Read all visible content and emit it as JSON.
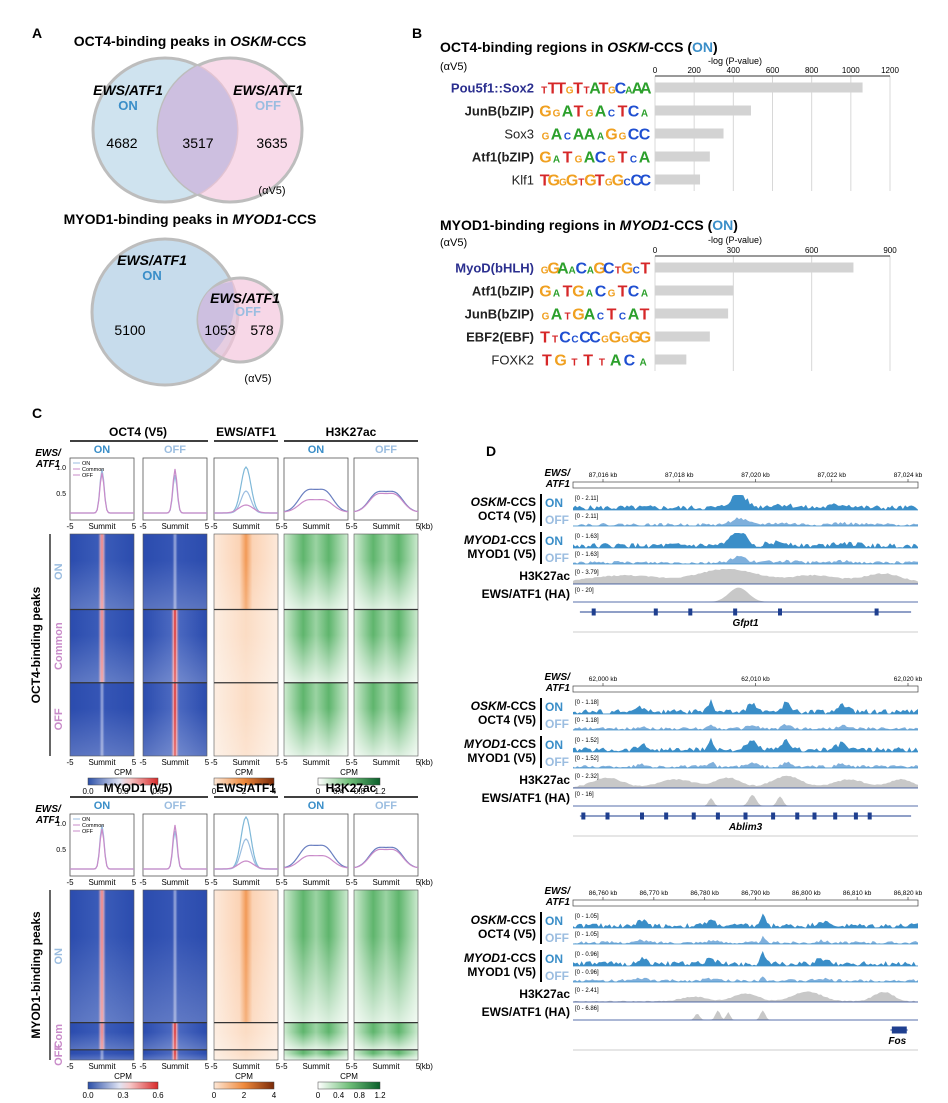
{
  "colors": {
    "on": "#3a8ec8",
    "off": "#9bbde0",
    "common": "#c98bc9",
    "lightblue_venn": "#cfe3ef",
    "pink_venn": "#f4c6dd",
    "motif_name_blue": "#2b2f8f",
    "bar_gray": "#d3d3d3",
    "track_blue": "#3a8ec8",
    "track_gray": "#c8c8c8"
  },
  "panelA": {
    "label": "A",
    "venn1": {
      "title_pre": "OCT4-binding peaks in ",
      "title_it": "OSKM",
      "title_post": "-CCS",
      "left_name": "EWS/ATF1",
      "left_state": "ON",
      "right_name": "EWS/ATF1",
      "right_state": "OFF",
      "left_only": "4682",
      "overlap": "3517",
      "right_only": "3635",
      "note": "(αV5)"
    },
    "venn2": {
      "title_pre": "MYOD1-binding peaks in ",
      "title_it": "MYOD1",
      "title_post": "-CCS",
      "left_name": "EWS/ATF1",
      "left_state": "ON",
      "right_name": "EWS/ATF1",
      "right_state": "OFF",
      "left_only": "5100",
      "overlap": "1053",
      "right_only": "578",
      "note": "(αV5)"
    }
  },
  "panelB": {
    "label": "B",
    "chart_data": [
      {
        "type": "bar",
        "title_pre": "OCT4-binding regions in ",
        "title_it": "OSKM",
        "title_mid": "-CCS (",
        "title_on": "ON",
        "title_post": ")",
        "note": "(αV5)",
        "xlabel": "-log (P-value)",
        "xlim": [
          0,
          1200
        ],
        "ticks": [
          0,
          200,
          400,
          600,
          800,
          1000,
          1200
        ],
        "categories": [
          "Pou5f1::Sox2",
          "JunB(bZIP)",
          "Sox3",
          "Atf1(bZIP)",
          "Klf1"
        ],
        "values": [
          1060,
          490,
          350,
          280,
          230
        ],
        "logos": [
          "TTTGTTATGCAAA",
          "GGATGACTCA",
          "GACAAAGGCC",
          "GATGACGTCA",
          "TGGGTGTGGCCC"
        ]
      },
      {
        "type": "bar",
        "title_pre": "MYOD1-binding regions in ",
        "title_it": "MYOD1",
        "title_mid": "-CCS (",
        "title_on": "ON",
        "title_post": ")",
        "note": "(αV5)",
        "xlabel": "-log (P-value)",
        "xlim": [
          0,
          900
        ],
        "ticks": [
          0,
          300,
          600,
          900
        ],
        "categories": [
          "MyoD(bHLH)",
          "Atf1(bZIP)",
          "JunB(bZIP)",
          "EBF2(EBF)",
          "FOXK2"
        ],
        "values": [
          760,
          300,
          280,
          210,
          120
        ],
        "logos": [
          "GGAACAGCTGCT",
          "GATGACGTCA",
          "GATGACTCAT",
          "TTCCCCGGGGG",
          "TGTTTACA"
        ]
      }
    ]
  },
  "panelC": {
    "label": "C",
    "ews_label_1": "EWS/",
    "ews_label_2": "ATF1",
    "top": {
      "headers": [
        "OCT4 (V5)",
        "EWS/ATF1",
        "H3K27ac"
      ],
      "col_states": [
        "ON",
        "OFF",
        "ON",
        "OFF"
      ],
      "legend": [
        "ON",
        "Common",
        "OFF"
      ],
      "yticks": [
        "1.0",
        "0.5"
      ],
      "xaxis": [
        "-5",
        "Summit",
        "5"
      ],
      "kb": "(kb)",
      "row_title": "OCT4-binding peaks",
      "groups": [
        "ON",
        "Common",
        "OFF"
      ]
    },
    "bottom": {
      "headers": [
        "MYOD1 (V5)",
        "EWS/ATF1",
        "H3K27ac"
      ],
      "col_states": [
        "ON",
        "OFF",
        "ON",
        "OFF"
      ],
      "legend": [
        "ON",
        "Common",
        "OFF"
      ],
      "yticks": [
        "1.0",
        "0.5"
      ],
      "xaxis": [
        "-5",
        "Summit",
        "5"
      ],
      "kb": "(kb)",
      "row_title": "MYOD1-binding peaks",
      "groups": [
        "ON",
        "Com",
        "OFF"
      ]
    },
    "colorbars": {
      "cpm": "CPM",
      "blue_ticks": [
        "0.0",
        "0.3",
        "0.6"
      ],
      "orange_ticks": [
        "0",
        "2",
        "4"
      ],
      "green_ticks": [
        "0",
        "0.4",
        "0.8",
        "1.2"
      ]
    }
  },
  "panelD": {
    "label": "D",
    "ews_1": "EWS/",
    "ews_2": "ATF1",
    "row_labels": {
      "oskm_it": "OSKM",
      "oskm_post": "-CCS",
      "oct4": "OCT4 (V5)",
      "myod_it": "MYOD1",
      "myod_post": "-CCS",
      "myod1": "MYOD1 (V5)",
      "h3k27ac": "H3K27ac",
      "ewsha": "EWS/ATF1 (HA)",
      "on": "ON",
      "off": "OFF"
    },
    "tracks": [
      {
        "coords": [
          "87,016 kb",
          "87,018 kb",
          "87,020 kb",
          "87,022 kb",
          "87,024 kb"
        ],
        "ranges": [
          "[0 - 2.11]",
          "[0 - 2.11]",
          "[0 - 1.63]",
          "[0 - 1.63]",
          "[0 - 3.79]",
          "[0 - 20]"
        ],
        "gene": "Gfpt1"
      },
      {
        "coords": [
          "62,000 kb",
          "62,010 kb",
          "62,020 kb"
        ],
        "ranges": [
          "[0 - 1.18]",
          "[0 - 1.18]",
          "[0 - 1.52]",
          "[0 - 1.52]",
          "[0 - 2.32]",
          "[0 - 16]"
        ],
        "gene": "Ablim3"
      },
      {
        "coords": [
          "86,760 kb",
          "86,770 kb",
          "86,780 kb",
          "86,790 kb",
          "86,800 kb",
          "86,810 kb",
          "86,820 kb"
        ],
        "ranges": [
          "[0 - 1.05]",
          "[0 - 1.05]",
          "[0 - 0.96]",
          "[0 - 0.96]",
          "[0 - 2.41]",
          "[0 - 6.86]"
        ],
        "gene": "Fos"
      }
    ]
  }
}
